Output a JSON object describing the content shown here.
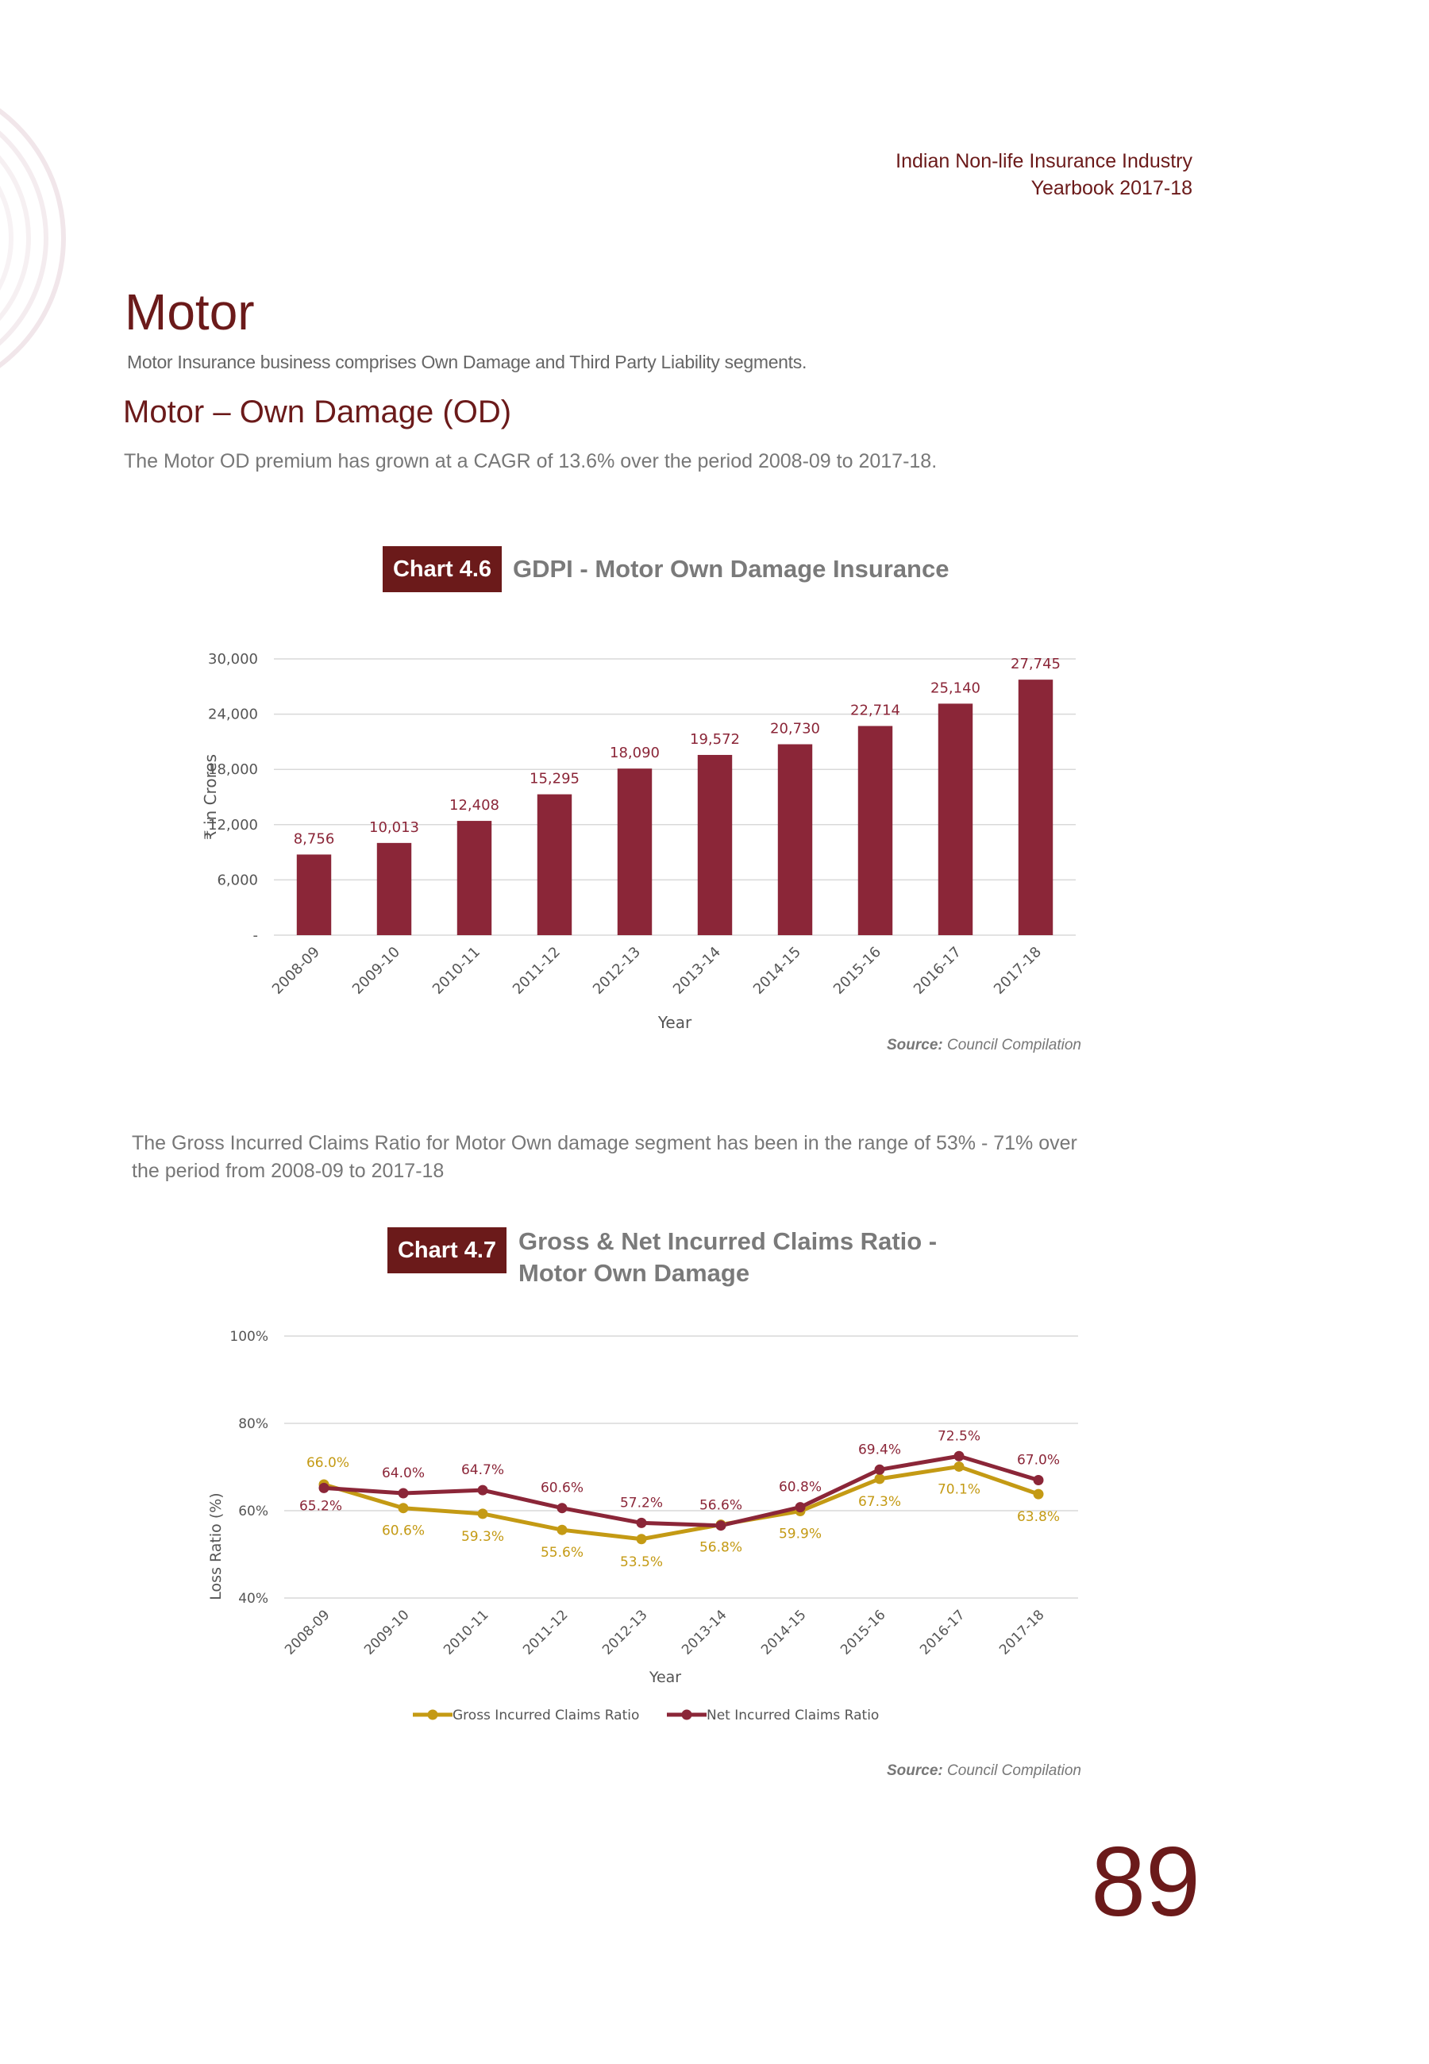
{
  "header": {
    "line1": "Indian Non-life Insurance Industry",
    "line2": "Yearbook 2017-18"
  },
  "page": {
    "title": "Motor",
    "subtitle": "Motor Insurance business comprises Own Damage and Third Party Liability segments.",
    "section_title": "Motor – Own Damage (OD)",
    "para1": "The Motor OD premium has grown at a CAGR of 13.6% over the period 2008-09 to 2017-18.",
    "para2": "The Gross Incurred Claims Ratio for Motor Own damage segment has been in the range of 53% - 71% over the period from 2008-09 to 2017-18",
    "page_number": "89"
  },
  "chart1_meta": {
    "badge": "Chart 4.6",
    "title": "GDPI - Motor Own Damage Insurance",
    "source_label": "Source:",
    "source_text": "Council Compilation"
  },
  "chart2_meta": {
    "badge": "Chart 4.7",
    "title_line1": "Gross & Net Incurred Claims Ratio -",
    "title_line2": "Motor Own Damage",
    "source_label": "Source:",
    "source_text": "Council Compilation"
  },
  "colors": {
    "brand": "#6b1a1a",
    "bar": "#8b2638",
    "gross_line": "#c49a14",
    "net_line": "#8b2638"
  },
  "chart_data": [
    {
      "type": "bar",
      "categories": [
        "2008-09",
        "2009-10",
        "2010-11",
        "2011-12",
        "2012-13",
        "2013-14",
        "2014-15",
        "2015-16",
        "2016-17",
        "2017-18"
      ],
      "values": [
        8756,
        10013,
        12408,
        15295,
        18090,
        19572,
        20730,
        22714,
        25140,
        27745
      ],
      "value_labels": [
        "8,756",
        "10,013",
        "12,408",
        "15,295",
        "18,090",
        "19,572",
        "20,730",
        "22,714",
        "25,140",
        "27,745"
      ],
      "xlabel": "Year",
      "ylabel": "₹ in Crores",
      "ylim": [
        0,
        30000
      ],
      "yticks": [
        0,
        6000,
        12000,
        18000,
        24000,
        30000
      ],
      "ytick_labels": [
        "-",
        "6,000",
        "12,000",
        "18,000",
        "24,000",
        "30,000"
      ],
      "grid": true
    },
    {
      "type": "line",
      "categories": [
        "2008-09",
        "2009-10",
        "2010-11",
        "2011-12",
        "2012-13",
        "2013-14",
        "2014-15",
        "2015-16",
        "2016-17",
        "2017-18"
      ],
      "series": [
        {
          "name": "Gross Incurred Claims Ratio",
          "values": [
            66.0,
            60.6,
            59.3,
            55.6,
            53.5,
            56.8,
            59.9,
            67.3,
            70.1,
            63.8
          ],
          "labels": [
            "66.0%",
            "60.6%",
            "59.3%",
            "55.6%",
            "53.5%",
            "56.8%",
            "59.9%",
            "67.3%",
            "70.1%",
            "63.8%"
          ]
        },
        {
          "name": "Net Incurred Claims Ratio",
          "values": [
            65.2,
            64.0,
            64.7,
            60.6,
            57.2,
            56.6,
            60.8,
            69.4,
            72.5,
            67.0
          ],
          "labels": [
            "65.2%",
            "64.0%",
            "64.7%",
            "60.6%",
            "57.2%",
            "56.6%",
            "60.8%",
            "69.4%",
            "72.5%",
            "67.0%"
          ]
        }
      ],
      "xlabel": "Year",
      "ylabel": "Loss Ratio (%)",
      "ylim": [
        40,
        100
      ],
      "yticks": [
        40,
        60,
        80,
        100
      ],
      "ytick_labels": [
        "40%",
        "60%",
        "80%",
        "100%"
      ],
      "legend": "bottom",
      "grid": true
    }
  ]
}
